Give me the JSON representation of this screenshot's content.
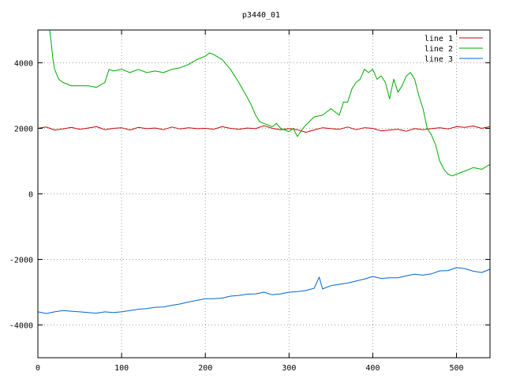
{
  "chart_data": {
    "type": "line",
    "title": "p3440_01",
    "xlabel": "",
    "ylabel": "",
    "xlim": [
      0,
      540
    ],
    "ylim": [
      -5000,
      5000
    ],
    "xticks": [
      0,
      100,
      200,
      300,
      400,
      500
    ],
    "yticks": [
      -4000,
      -2000,
      0,
      2000,
      4000
    ],
    "grid": true,
    "legend_position": "top-right",
    "series": [
      {
        "name": "line 1",
        "color": "#cc0000",
        "x": [
          0,
          10,
          20,
          30,
          40,
          50,
          60,
          70,
          80,
          90,
          100,
          110,
          120,
          130,
          140,
          150,
          160,
          170,
          180,
          190,
          200,
          210,
          220,
          230,
          240,
          250,
          260,
          270,
          280,
          290,
          300,
          310,
          320,
          330,
          340,
          350,
          360,
          370,
          380,
          390,
          400,
          410,
          420,
          430,
          440,
          450,
          460,
          470,
          480,
          490,
          500,
          510,
          520,
          530,
          540
        ],
        "y": [
          2000,
          2040,
          1950,
          1980,
          2030,
          1970,
          2010,
          2050,
          1960,
          2000,
          2020,
          1950,
          2030,
          1990,
          2010,
          1960,
          2040,
          1980,
          2020,
          1990,
          2000,
          1970,
          2050,
          2000,
          1970,
          2010,
          1990,
          2080,
          2000,
          1960,
          1990,
          1960,
          1880,
          1950,
          2020,
          1990,
          1970,
          2040,
          1960,
          2020,
          2000,
          1920,
          1950,
          1970,
          1910,
          1990,
          1960,
          1990,
          2020,
          1980,
          2050,
          2030,
          2070,
          2000,
          2050
        ]
      },
      {
        "name": "line 2",
        "color": "#00aa00",
        "x": [
          14,
          16,
          18,
          20,
          25,
          30,
          40,
          50,
          60,
          70,
          80,
          85,
          90,
          100,
          110,
          120,
          130,
          140,
          150,
          160,
          170,
          180,
          190,
          200,
          205,
          210,
          220,
          230,
          240,
          250,
          255,
          260,
          265,
          270,
          275,
          280,
          285,
          290,
          295,
          300,
          305,
          310,
          315,
          320,
          330,
          340,
          350,
          360,
          365,
          370,
          375,
          380,
          385,
          390,
          395,
          400,
          405,
          410,
          415,
          420,
          425,
          430,
          435,
          440,
          445,
          450,
          455,
          460,
          465,
          470,
          475,
          480,
          485,
          490,
          495,
          500,
          510,
          520,
          530,
          540
        ],
        "y": [
          5000,
          4600,
          4100,
          3800,
          3500,
          3400,
          3300,
          3300,
          3300,
          3250,
          3400,
          3800,
          3750,
          3800,
          3700,
          3800,
          3700,
          3750,
          3700,
          3800,
          3850,
          3950,
          4100,
          4200,
          4300,
          4250,
          4100,
          3800,
          3400,
          2950,
          2700,
          2400,
          2200,
          2150,
          2100,
          2050,
          2150,
          2000,
          1950,
          1900,
          2000,
          1750,
          1950,
          2100,
          2350,
          2400,
          2600,
          2400,
          2800,
          2800,
          3200,
          3400,
          3500,
          3800,
          3700,
          3800,
          3500,
          3600,
          3400,
          2900,
          3500,
          3100,
          3300,
          3600,
          3700,
          3500,
          3000,
          2600,
          2000,
          1800,
          1500,
          1000,
          750,
          600,
          550,
          600,
          700,
          800,
          750,
          900
        ]
      },
      {
        "name": "line 3",
        "color": "#0066cc",
        "x": [
          0,
          10,
          20,
          30,
          40,
          50,
          60,
          70,
          80,
          90,
          100,
          110,
          120,
          130,
          140,
          150,
          160,
          170,
          180,
          190,
          200,
          210,
          220,
          230,
          240,
          250,
          260,
          270,
          280,
          290,
          300,
          310,
          320,
          330,
          336,
          340,
          350,
          360,
          370,
          380,
          390,
          400,
          410,
          420,
          430,
          440,
          450,
          460,
          470,
          480,
          490,
          500,
          510,
          520,
          530,
          540
        ],
        "y": [
          -3600,
          -3650,
          -3600,
          -3560,
          -3580,
          -3600,
          -3620,
          -3640,
          -3600,
          -3620,
          -3600,
          -3560,
          -3520,
          -3500,
          -3460,
          -3450,
          -3400,
          -3360,
          -3300,
          -3250,
          -3200,
          -3200,
          -3180,
          -3120,
          -3100,
          -3060,
          -3050,
          -3000,
          -3080,
          -3050,
          -3000,
          -2980,
          -2950,
          -2880,
          -2540,
          -2900,
          -2800,
          -2760,
          -2720,
          -2660,
          -2600,
          -2520,
          -2580,
          -2560,
          -2560,
          -2500,
          -2450,
          -2480,
          -2440,
          -2350,
          -2340,
          -2250,
          -2280,
          -2360,
          -2400,
          -2300
        ]
      }
    ]
  }
}
